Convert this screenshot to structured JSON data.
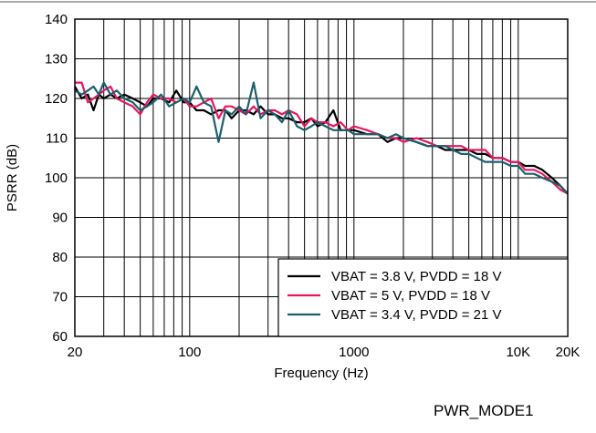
{
  "chart_data": {
    "type": "line",
    "xscale": "log",
    "xlabel": "Frequency (Hz)",
    "ylabel": "PSRR (dB)",
    "xlim": [
      20,
      20000
    ],
    "ylim": [
      60,
      140
    ],
    "yticks": [
      60,
      70,
      80,
      90,
      100,
      110,
      120,
      130,
      140
    ],
    "xtick_labels": [
      {
        "value": 20,
        "label": "20"
      },
      {
        "value": 100,
        "label": "100"
      },
      {
        "value": 1000,
        "label": "1000"
      },
      {
        "value": 10000,
        "label": "10K"
      },
      {
        "value": 20000,
        "label": "20K"
      }
    ],
    "grid": true,
    "legend_position": "bottom-right",
    "series": [
      {
        "name": "VBAT = 3.8 V, PVDD = 18 V",
        "color": "#000000",
        "x": [
          20,
          22,
          24,
          26,
          28,
          30,
          33,
          36,
          40,
          45,
          50,
          55,
          60,
          67,
          75,
          83,
          92,
          100,
          110,
          122,
          135,
          150,
          165,
          180,
          200,
          220,
          245,
          270,
          300,
          330,
          365,
          400,
          450,
          500,
          550,
          600,
          670,
          750,
          830,
          920,
          1000,
          1200,
          1400,
          1600,
          1800,
          2000,
          2400,
          2800,
          3200,
          3600,
          4000,
          4500,
          5000,
          5600,
          6300,
          7000,
          8000,
          9000,
          10000,
          11000,
          12500,
          14000,
          16000,
          18000,
          20000
        ],
        "y": [
          123,
          120,
          121,
          117,
          121,
          120,
          121,
          120,
          121,
          120,
          119,
          118,
          120,
          120,
          119,
          122,
          119,
          119,
          117,
          117,
          116,
          117,
          117,
          115,
          117,
          117,
          116,
          118,
          116,
          116,
          115,
          115,
          114,
          114,
          115,
          113,
          114,
          117,
          112,
          112,
          112,
          111,
          111,
          109,
          110,
          110,
          109,
          108,
          108,
          107,
          107,
          107,
          107,
          106,
          106,
          105,
          105,
          104,
          104,
          103,
          103,
          102,
          100,
          98,
          96
        ]
      },
      {
        "name": "VBAT = 5 V, PVDD = 18 V",
        "color": "#e8175d",
        "x": [
          20,
          22,
          24,
          26,
          28,
          30,
          33,
          36,
          40,
          45,
          50,
          55,
          60,
          67,
          75,
          83,
          92,
          100,
          110,
          122,
          135,
          150,
          165,
          180,
          200,
          220,
          245,
          270,
          300,
          330,
          365,
          400,
          450,
          500,
          550,
          600,
          670,
          750,
          830,
          920,
          1000,
          1200,
          1400,
          1600,
          1800,
          2000,
          2400,
          2800,
          3200,
          3600,
          4000,
          4500,
          5000,
          5600,
          6300,
          7000,
          8000,
          9000,
          10000,
          11000,
          12500,
          14000,
          16000,
          18000,
          20000
        ],
        "y": [
          124,
          124,
          119,
          120,
          121,
          122,
          123,
          120,
          119,
          118,
          116,
          119,
          121,
          120,
          120,
          119,
          120,
          118,
          118,
          119,
          120,
          115,
          118,
          118,
          117,
          116,
          118,
          116,
          117,
          117,
          116,
          117,
          116,
          113,
          115,
          114,
          114,
          113,
          114,
          112,
          113,
          112,
          111,
          110,
          110,
          109,
          110,
          109,
          108,
          108,
          108,
          108,
          107,
          107,
          107,
          105,
          105,
          104,
          104,
          102,
          102,
          101,
          99,
          97,
          96
        ]
      },
      {
        "name": "VBAT = 3.4 V, PVDD = 21 V",
        "color": "#1c5e6e",
        "x": [
          20,
          22,
          24,
          26,
          28,
          30,
          33,
          36,
          40,
          45,
          50,
          55,
          60,
          67,
          75,
          83,
          92,
          100,
          110,
          122,
          135,
          150,
          165,
          180,
          200,
          220,
          245,
          270,
          300,
          330,
          365,
          400,
          450,
          500,
          550,
          600,
          670,
          750,
          830,
          920,
          1000,
          1200,
          1400,
          1600,
          1800,
          2000,
          2400,
          2800,
          3200,
          3600,
          4000,
          4500,
          5000,
          5600,
          6300,
          7000,
          8000,
          9000,
          10000,
          11000,
          12500,
          14000,
          16000,
          18000,
          20000
        ],
        "y": [
          122,
          121,
          122,
          123,
          121,
          124,
          121,
          122,
          120,
          119,
          117,
          118,
          119,
          121,
          118,
          119,
          120,
          119,
          123,
          119,
          118,
          109,
          117,
          116,
          118,
          116,
          124,
          115,
          117,
          116,
          114,
          117,
          113,
          112,
          113,
          114,
          113,
          112,
          112,
          112,
          111,
          111,
          111,
          110,
          111,
          110,
          109,
          108,
          108,
          108,
          107,
          106,
          106,
          105,
          104,
          104,
          104,
          103,
          103,
          101,
          101,
          100,
          99,
          98,
          96
        ]
      }
    ]
  },
  "footer_tag": "PWR_MODE1"
}
